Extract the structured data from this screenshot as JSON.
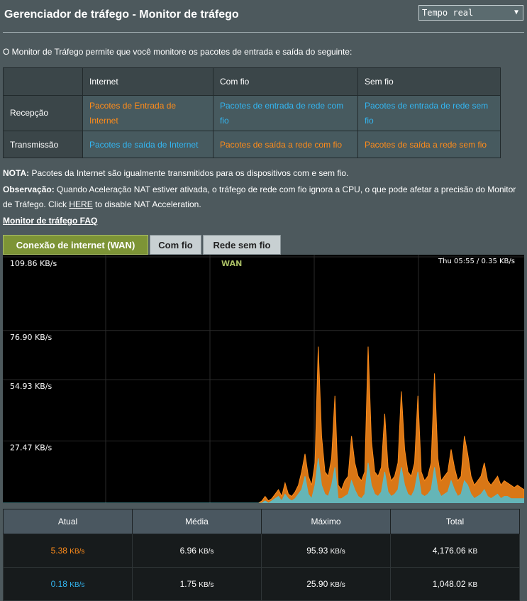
{
  "header": {
    "title": "Gerenciador de tráfego - Monitor de tráfego",
    "mode_select": "Tempo real"
  },
  "intro": "O Monitor de Tráfego permite que você monitore os pacotes de entrada e saída do seguinte:",
  "legend_table": {
    "headers": [
      "Internet",
      "Com fio",
      "Sem fio"
    ],
    "rows": [
      {
        "label": "Recepção",
        "cells": [
          "Pacotes de Entrada de Internet",
          "Pacotes de entrada de rede com fio",
          "Pacotes de entrada de rede sem fio"
        ]
      },
      {
        "label": "Transmissão",
        "cells": [
          "Pacotes de saída de Internet",
          "Pacotes de saída a rede com fio",
          "Pacotes de saída a rede sem fio"
        ]
      }
    ]
  },
  "notes": {
    "nota_label": "NOTA:",
    "nota_text": " Pacotes da Internet são igualmente transmitidos para os dispositivos com e sem fio.",
    "obs_label": "Observação:",
    "obs_text_1": " Quando Aceleração NAT estiver ativada, o tráfego de rede com fio ignora a CPU, o que pode afetar a precisão do Monitor de Tráfego. Click ",
    "obs_link": "HERE",
    "obs_text_2": " to disable NAT Acceleration."
  },
  "faq_link": "Monitor de tráfego FAQ",
  "tabs": [
    {
      "label": "Conexão de internet (WAN)",
      "active": true
    },
    {
      "label": "Com fio",
      "active": false
    },
    {
      "label": "Rede sem fio",
      "active": false
    }
  ],
  "chart_data": {
    "type": "area",
    "title": "WAN",
    "readout": "Thu 05:55 / 0.35 KB/s",
    "y_ticks": [
      "109.86 KB/s",
      "76.90 KB/s",
      "54.93 KB/s",
      "27.47 KB/s"
    ],
    "ylim": [
      0,
      109.86
    ],
    "colors": {
      "reception": "#ff8c1a",
      "transmission": "#5fb8c0",
      "title": "#a8bd64"
    },
    "series": [
      {
        "color": "#ff8c1a",
        "values": [
          0,
          0,
          0,
          0,
          0,
          0,
          0,
          0,
          0,
          0,
          0,
          0,
          0,
          0,
          0,
          0,
          0,
          0,
          0,
          0,
          0,
          0,
          0,
          0,
          0,
          0,
          0,
          0,
          0,
          0,
          0,
          0,
          0,
          0,
          0,
          0,
          0,
          0,
          0,
          0,
          0,
          0,
          0,
          0,
          0,
          0,
          0,
          0,
          0,
          0,
          0,
          0,
          0,
          0,
          0,
          0,
          0,
          0,
          0,
          0,
          0,
          0,
          0,
          0,
          0,
          0,
          0,
          0,
          0,
          0,
          0,
          0,
          0,
          0,
          0,
          0,
          0,
          0,
          1,
          3,
          1,
          2,
          4,
          6,
          3,
          9,
          4,
          3,
          5,
          8,
          14,
          22,
          12,
          8,
          18,
          70,
          30,
          14,
          12,
          20,
          48,
          8,
          6,
          10,
          12,
          30,
          18,
          12,
          10,
          14,
          70,
          28,
          14,
          12,
          16,
          40,
          16,
          10,
          12,
          18,
          50,
          24,
          14,
          12,
          18,
          48,
          14,
          10,
          12,
          18,
          58,
          20,
          10,
          12,
          14,
          24,
          16,
          10,
          12,
          30,
          22,
          12,
          8,
          10,
          12,
          18,
          10,
          8,
          10,
          12,
          8,
          10,
          9,
          8,
          7,
          8,
          7,
          6
        ],
        "note": "reception (orange)"
      },
      {
        "color": "#5fb8c0",
        "values": [
          0,
          0,
          0,
          0,
          0,
          0,
          0,
          0,
          0,
          0,
          0,
          0,
          0,
          0,
          0,
          0,
          0,
          0,
          0,
          0,
          0,
          0,
          0,
          0,
          0,
          0,
          0,
          0,
          0,
          0,
          0,
          0,
          0,
          0,
          0,
          0,
          0,
          0,
          0,
          0,
          0,
          0,
          0,
          0,
          0,
          0,
          0,
          0,
          0,
          0,
          0,
          0,
          0,
          0,
          0,
          0,
          0,
          0,
          0,
          0,
          0,
          0,
          0,
          0,
          0,
          0,
          0,
          0,
          0,
          0,
          0,
          0,
          0,
          0,
          0,
          0,
          0,
          0,
          0,
          1,
          0,
          1,
          2,
          3,
          1,
          4,
          2,
          1,
          2,
          4,
          6,
          12,
          4,
          2,
          8,
          20,
          8,
          4,
          3,
          8,
          16,
          2,
          2,
          3,
          4,
          10,
          6,
          3,
          2,
          4,
          18,
          8,
          4,
          3,
          5,
          14,
          5,
          3,
          4,
          6,
          16,
          8,
          4,
          3,
          6,
          14,
          4,
          3,
          4,
          6,
          16,
          6,
          3,
          4,
          5,
          10,
          6,
          3,
          4,
          10,
          8,
          4,
          2,
          3,
          4,
          6,
          3,
          2,
          3,
          4,
          2,
          3,
          3,
          2,
          2,
          2,
          2,
          2
        ],
        "note": "transmission (teal)"
      }
    ]
  },
  "stats": {
    "headers": [
      "Atual",
      "Média",
      "Máximo",
      "Total"
    ],
    "rows": [
      {
        "color": "#ff8c1a",
        "atual": "5.38",
        "atual_unit": "KB/s",
        "media": "6.96",
        "media_unit": "KB/s",
        "maximo": "95.93",
        "maximo_unit": "KB/s",
        "total": "4,176.06",
        "total_unit": "KB"
      },
      {
        "color": "#33b5f0",
        "atual": "0.18",
        "atual_unit": "KB/s",
        "media": "1.75",
        "media_unit": "KB/s",
        "maximo": "25.90",
        "maximo_unit": "KB/s",
        "total": "1,048.02",
        "total_unit": "KB"
      }
    ]
  }
}
